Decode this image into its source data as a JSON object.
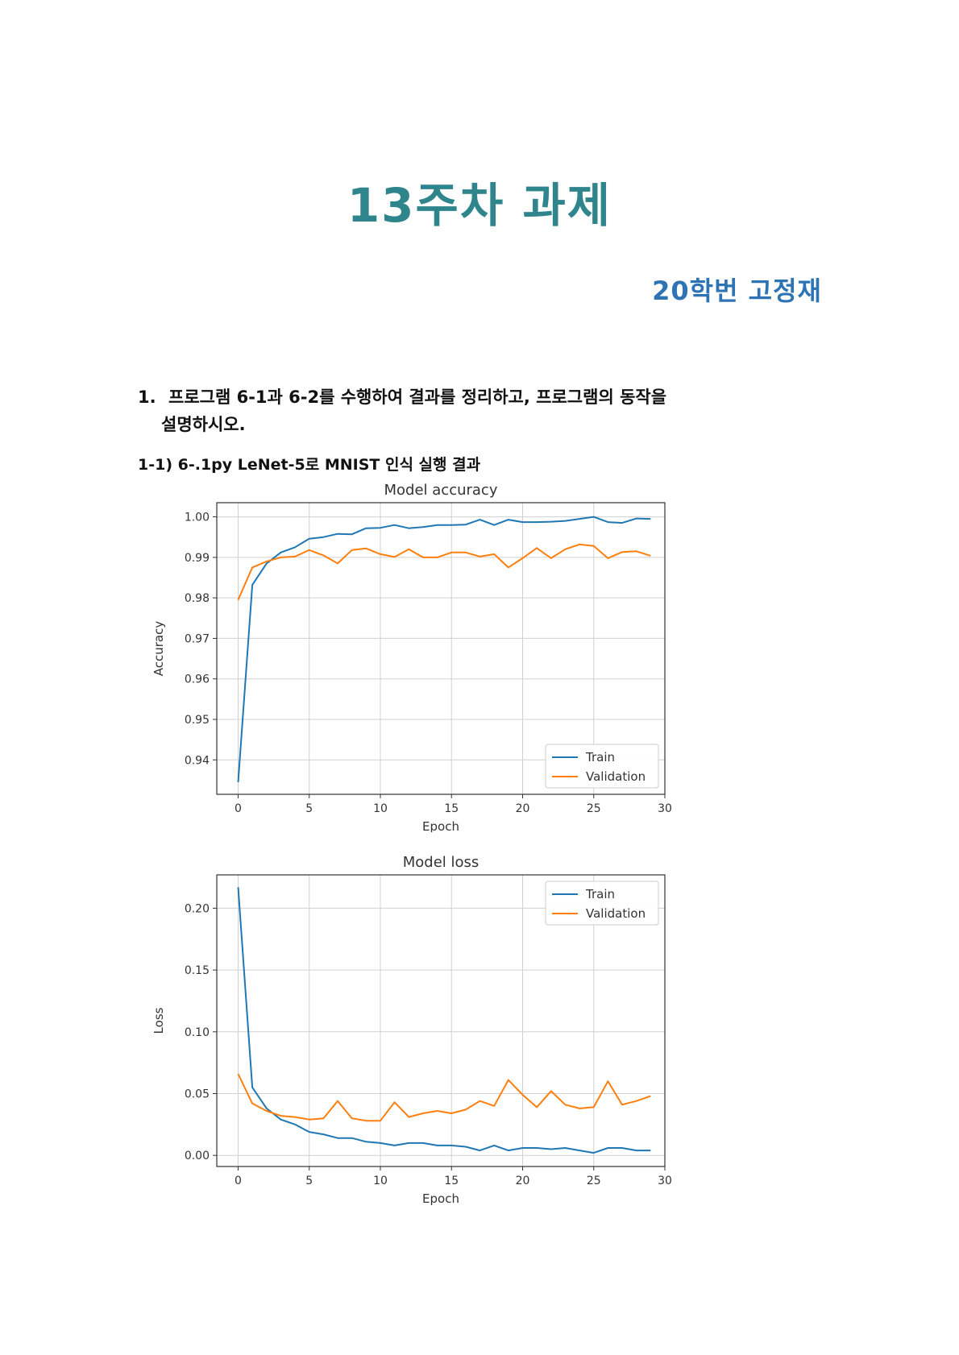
{
  "title": "13주차 과제",
  "author": "20학번 고정재",
  "question": {
    "number": "1.",
    "line1": "프로그램 6-1과 6-2를 수행하여 결과를 정리하고, 프로그램의 동작을",
    "line2": "설명하시오."
  },
  "subheading": "1-1) 6-.1py LeNet-5로 MNIST 인식 실행 결과",
  "chart_data": [
    {
      "type": "line",
      "title": "Model accuracy",
      "xlabel": "Epoch",
      "ylabel": "Accuracy",
      "xlim": [
        -1.5,
        30
      ],
      "ylim": [
        0.9315,
        1.0035
      ],
      "xticks": [
        0,
        5,
        10,
        15,
        20,
        25,
        30
      ],
      "yticks": [
        0.94,
        0.95,
        0.96,
        0.97,
        0.98,
        0.99,
        1.0
      ],
      "ytick_labels": [
        "0.94",
        "0.95",
        "0.96",
        "0.97",
        "0.98",
        "0.99",
        "1.00"
      ],
      "grid": true,
      "legend": "lower-right",
      "x": [
        0,
        1,
        2,
        3,
        4,
        5,
        6,
        7,
        8,
        9,
        10,
        11,
        12,
        13,
        14,
        15,
        16,
        17,
        18,
        19,
        20,
        21,
        22,
        23,
        24,
        25,
        26,
        27,
        28,
        29
      ],
      "series": [
        {
          "name": "Train",
          "color": "#1f77b4",
          "values": [
            0.9345,
            0.9832,
            0.9885,
            0.9912,
            0.9925,
            0.9946,
            0.995,
            0.9958,
            0.9957,
            0.9972,
            0.9973,
            0.998,
            0.9972,
            0.9975,
            0.998,
            0.998,
            0.9981,
            0.9993,
            0.998,
            0.9993,
            0.9987,
            0.9987,
            0.9988,
            0.999,
            0.9995,
            1.0,
            0.9987,
            0.9985,
            0.9996,
            0.9995
          ]
        },
        {
          "name": "Validation",
          "color": "#ff7f0e",
          "values": [
            0.9795,
            0.9875,
            0.989,
            0.99,
            0.9902,
            0.9918,
            0.9905,
            0.9885,
            0.9918,
            0.9922,
            0.9908,
            0.9901,
            0.992,
            0.99,
            0.99,
            0.9912,
            0.9912,
            0.9902,
            0.9908,
            0.9875,
            0.9898,
            0.9923,
            0.9898,
            0.992,
            0.9932,
            0.9928,
            0.9898,
            0.9913,
            0.9915,
            0.9904
          ]
        }
      ]
    },
    {
      "type": "line",
      "title": "Model loss",
      "xlabel": "Epoch",
      "ylabel": "Loss",
      "xlim": [
        -1.5,
        30
      ],
      "ylim": [
        -0.009,
        0.227
      ],
      "xticks": [
        0,
        5,
        10,
        15,
        20,
        25,
        30
      ],
      "yticks": [
        0.0,
        0.05,
        0.1,
        0.15,
        0.2
      ],
      "ytick_labels": [
        "0.00",
        "0.05",
        "0.10",
        "0.15",
        "0.20"
      ],
      "grid": true,
      "legend": "upper-right",
      "x": [
        0,
        1,
        2,
        3,
        4,
        5,
        6,
        7,
        8,
        9,
        10,
        11,
        12,
        13,
        14,
        15,
        16,
        17,
        18,
        19,
        20,
        21,
        22,
        23,
        24,
        25,
        26,
        27,
        28,
        29
      ],
      "series": [
        {
          "name": "Train",
          "color": "#1f77b4",
          "values": [
            0.217,
            0.055,
            0.038,
            0.029,
            0.025,
            0.019,
            0.017,
            0.014,
            0.014,
            0.011,
            0.01,
            0.008,
            0.01,
            0.01,
            0.008,
            0.008,
            0.007,
            0.004,
            0.008,
            0.004,
            0.006,
            0.006,
            0.005,
            0.006,
            0.004,
            0.002,
            0.006,
            0.006,
            0.004,
            0.004
          ]
        },
        {
          "name": "Validation",
          "color": "#ff7f0e",
          "values": [
            0.066,
            0.042,
            0.036,
            0.032,
            0.031,
            0.029,
            0.03,
            0.044,
            0.03,
            0.028,
            0.028,
            0.043,
            0.031,
            0.034,
            0.036,
            0.034,
            0.037,
            0.044,
            0.04,
            0.061,
            0.049,
            0.039,
            0.052,
            0.041,
            0.038,
            0.039,
            0.06,
            0.041,
            0.044,
            0.048
          ]
        }
      ]
    }
  ]
}
